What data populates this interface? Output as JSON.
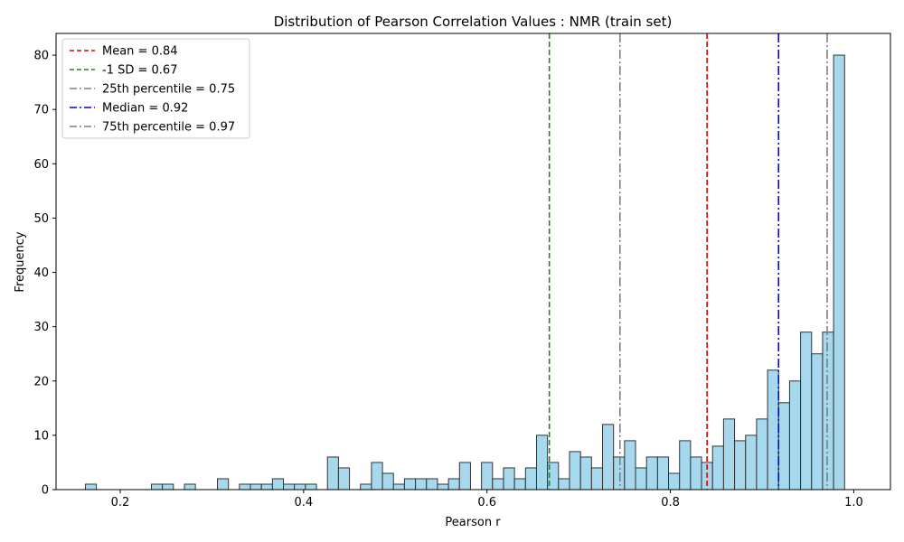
{
  "chart_data": {
    "type": "bar",
    "title": "Distribution of Pearson Correlation Values : NMR (train set)",
    "xlabel": "Pearson r",
    "ylabel": "Frequency",
    "xlim": [
      0.13,
      1.04
    ],
    "ylim": [
      0,
      84
    ],
    "grid": false,
    "legend_position": "top-left",
    "x_ticks": [
      0.2,
      0.4,
      0.6,
      0.8,
      1.0
    ],
    "x_tick_labels": [
      "0.2",
      "0.4",
      "0.6",
      "0.8",
      "1.0"
    ],
    "y_ticks": [
      0,
      10,
      20,
      30,
      40,
      50,
      60,
      70,
      80
    ],
    "y_tick_labels": [
      "0",
      "10",
      "20",
      "30",
      "40",
      "50",
      "60",
      "70",
      "80"
    ],
    "bin_start": 0.162,
    "bin_width": 0.012,
    "counts": [
      1,
      0,
      0,
      0,
      0,
      0,
      1,
      1,
      0,
      1,
      0,
      0,
      2,
      0,
      1,
      1,
      1,
      2,
      1,
      1,
      1,
      0,
      6,
      4,
      0,
      1,
      5,
      3,
      1,
      2,
      2,
      2,
      1,
      2,
      5,
      0,
      5,
      2,
      4,
      2,
      4,
      10,
      5,
      2,
      7,
      6,
      4,
      12,
      6,
      9,
      4,
      6,
      6,
      3,
      9,
      6,
      5,
      8,
      13,
      9,
      10,
      13,
      22,
      16,
      20,
      29,
      25,
      29,
      80
    ],
    "bar_fill": "#a6d9ee",
    "bar_edge": "#333333",
    "vlines": [
      {
        "label": "Mean = 0.84",
        "x": 0.84,
        "color": "#e00000",
        "style": "dashed"
      },
      {
        "label": "-1 SD = 0.67",
        "x": 0.668,
        "color": "#1a8a1a",
        "style": "dashed"
      },
      {
        "label": "25th percentile = 0.75",
        "x": 0.745,
        "color": "#808080",
        "style": "dashdot"
      },
      {
        "label": "Median = 0.92",
        "x": 0.918,
        "color": "#0000e0",
        "style": "dashdot"
      },
      {
        "label": "75th percentile = 0.97",
        "x": 0.971,
        "color": "#808080",
        "style": "dashdot"
      }
    ]
  }
}
